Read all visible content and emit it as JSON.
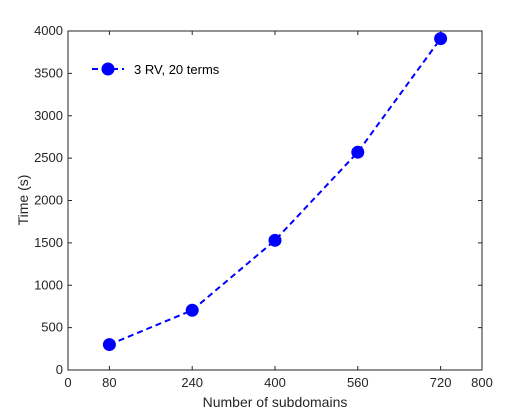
{
  "chart_data": {
    "type": "line",
    "title": "",
    "xlabel": "Number of subdomains",
    "ylabel": "Time (s)",
    "xlim": [
      0,
      800
    ],
    "ylim": [
      0,
      4000
    ],
    "x_ticks": [
      0,
      80,
      240,
      400,
      560,
      720,
      800
    ],
    "y_ticks": [
      0,
      500,
      1000,
      1500,
      2000,
      2500,
      3000,
      3500,
      4000
    ],
    "grid": false,
    "legend_position": "top-left",
    "series": [
      {
        "name": "3 RV, 20 terms",
        "color": "#0000ff",
        "line_style": "dashed",
        "marker": "circle",
        "x": [
          80,
          240,
          400,
          560,
          720
        ],
        "y": [
          300,
          705,
          1530,
          2570,
          3910
        ]
      }
    ]
  }
}
